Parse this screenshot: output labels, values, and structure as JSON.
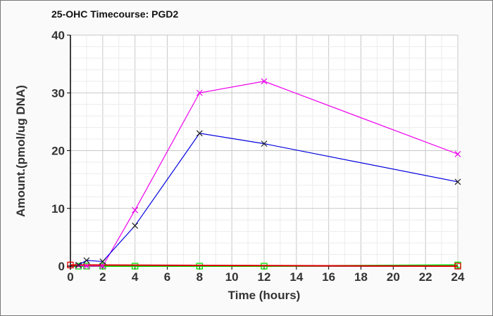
{
  "chart_data": {
    "type": "line",
    "title": "25-OHC Timecourse: PGD2",
    "xlabel": "Time (hours)",
    "ylabel": "Amount.(pmol/ug DNA)",
    "xlim": [
      0,
      24
    ],
    "ylim": [
      0,
      40
    ],
    "xticks": [
      0,
      2,
      4,
      6,
      8,
      10,
      12,
      14,
      16,
      18,
      20,
      22,
      24
    ],
    "yticks": [
      0,
      10,
      20,
      30,
      40
    ],
    "grid": true,
    "series": [
      {
        "name": "green series",
        "color": "#00dd00",
        "marker": "square",
        "x": [
          0.5,
          1,
          2,
          4,
          8,
          12,
          24
        ],
        "y": [
          0,
          0,
          0,
          0,
          0,
          0,
          0.2
        ]
      },
      {
        "name": "red series",
        "color": "#dd0000",
        "marker": "square",
        "x": [
          0,
          24
        ],
        "y": [
          0.2,
          0
        ]
      },
      {
        "name": "magenta series",
        "color": "#ee00ee",
        "marker": "cross",
        "x": [
          0.5,
          1,
          2,
          4,
          8,
          12,
          24
        ],
        "y": [
          0.1,
          0,
          0,
          9.7,
          30,
          32,
          19.4
        ]
      },
      {
        "name": "blue series",
        "color": "#0000dd",
        "marker": "cross",
        "x": [
          0.5,
          1,
          2,
          4,
          8,
          12,
          24
        ],
        "y": [
          0.2,
          1,
          0.8,
          7,
          23,
          21.2,
          14.6
        ]
      }
    ]
  }
}
